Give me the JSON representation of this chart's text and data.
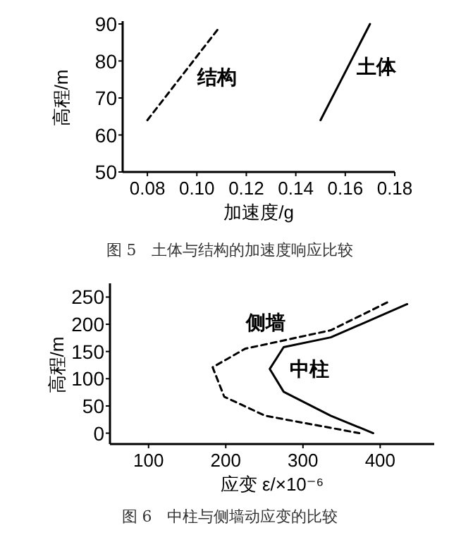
{
  "chart_data": [
    {
      "type": "line",
      "xlabel": "加速度/g",
      "ylabel": "高程/m",
      "xlim": [
        0.07,
        0.18
      ],
      "ylim": [
        50,
        90
      ],
      "xticks": [
        {
          "value": 0.08,
          "label": "0.08"
        },
        {
          "value": 0.1,
          "label": "0.10"
        },
        {
          "value": 0.12,
          "label": "0.12"
        },
        {
          "value": 0.14,
          "label": "0.14"
        },
        {
          "value": 0.16,
          "label": "0.16"
        },
        {
          "value": 0.18,
          "label": "0.18"
        }
      ],
      "yticks": [
        50,
        60,
        70,
        80,
        90
      ],
      "annotations": [
        "图 5　土体与结构的加速度响应比较"
      ],
      "series": [
        {
          "name": "结构",
          "color": "#000000",
          "line_style": "dashed",
          "x": [
            0.08,
            0.109
          ],
          "values": [
            64,
            89
          ]
        },
        {
          "name": "土体",
          "color": "#000000",
          "line_style": "solid",
          "x": [
            0.15,
            0.17
          ],
          "values": [
            64,
            90
          ]
        }
      ]
    },
    {
      "type": "line",
      "xlabel": "应变 ε/×10⁻⁶",
      "ylabel": "高程/m",
      "xlim": [
        50,
        470
      ],
      "ylim": [
        -20,
        270
      ],
      "xticks": [
        100,
        200,
        300,
        400
      ],
      "yticks": [
        0,
        50,
        100,
        150,
        200,
        250
      ],
      "annotations": [
        "图 6　中柱与侧墙动应变的比较"
      ],
      "series": [
        {
          "name": "侧墙",
          "color": "#000000",
          "line_style": "dashed",
          "x": [
            409,
            336,
            225,
            183,
            198,
            251,
            373
          ],
          "values": [
            240,
            189,
            155,
            121,
            67,
            32,
            0
          ]
        },
        {
          "name": "中柱",
          "color": "#000000",
          "line_style": "solid",
          "x": [
            435,
            336,
            275,
            257,
            275,
            336,
            391
          ],
          "values": [
            237,
            176,
            158,
            118,
            76,
            32,
            0
          ]
        }
      ]
    }
  ]
}
